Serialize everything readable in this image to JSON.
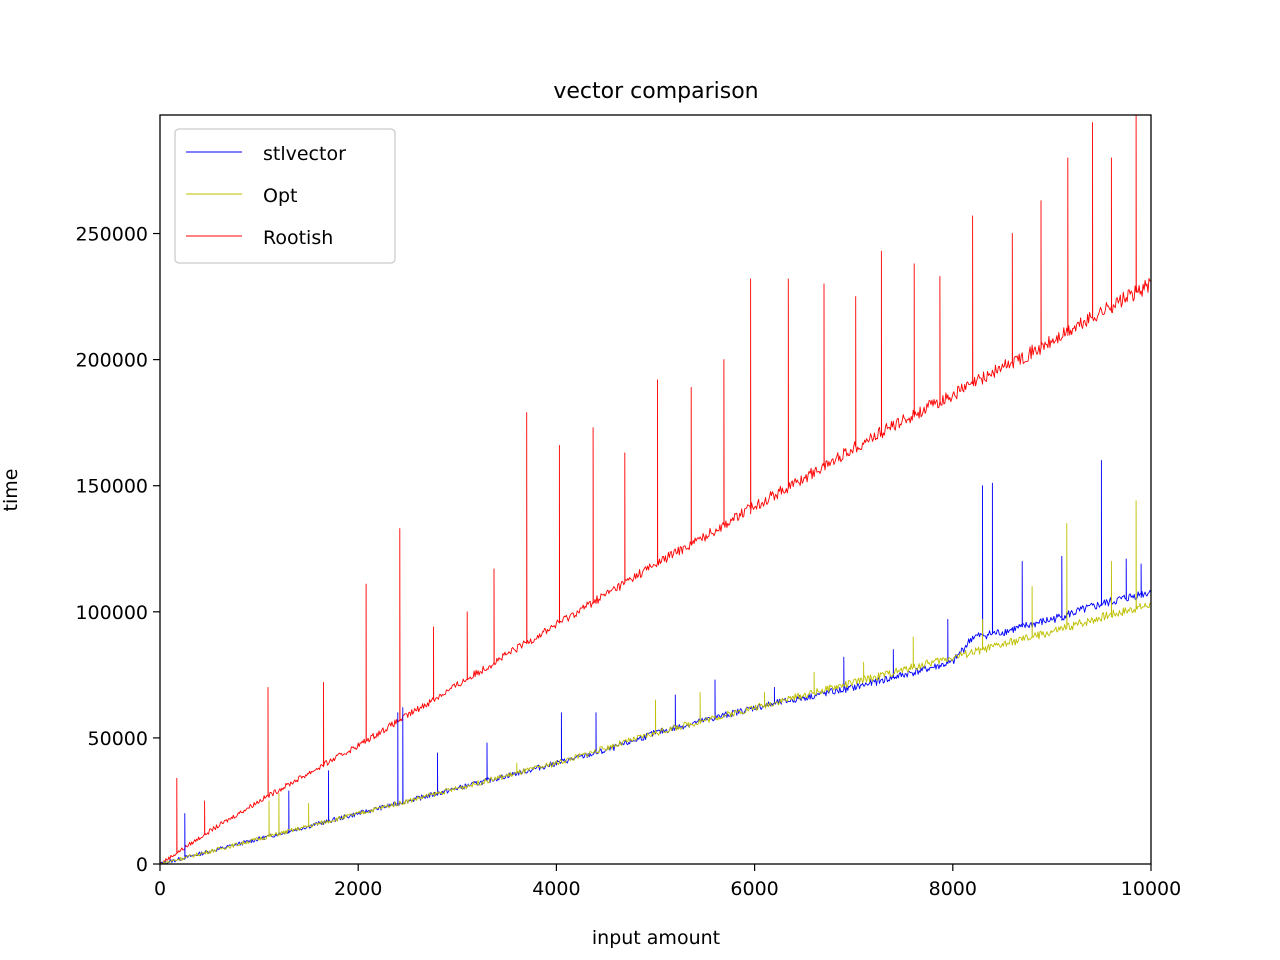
{
  "chart_data": {
    "type": "line",
    "title": "vector comparison",
    "xlabel": "input amount",
    "ylabel": "time",
    "xlim": [
      0,
      10000
    ],
    "ylim": [
      0,
      297000
    ],
    "x_ticks": [
      0,
      2000,
      4000,
      6000,
      8000,
      10000
    ],
    "x_tick_labels": [
      "0",
      "2000",
      "4000",
      "6000",
      "8000",
      "10000"
    ],
    "y_ticks": [
      0,
      50000,
      100000,
      150000,
      200000,
      250000
    ],
    "y_tick_labels": [
      "0",
      "50000",
      "100000",
      "150000",
      "200000",
      "250000"
    ],
    "grid": false,
    "legend_position": "top-left",
    "series": [
      {
        "name": "stlvector",
        "color": "#0000ff",
        "x": [
          0,
          500,
          1000,
          1500,
          2000,
          2500,
          3000,
          3500,
          4000,
          4500,
          5000,
          5500,
          6000,
          6500,
          7000,
          7500,
          8000,
          8200,
          8500,
          9000,
          9500,
          10000
        ],
        "values": [
          0,
          5000,
          10000,
          15000,
          20000,
          25000,
          30000,
          35000,
          40000,
          45000,
          52000,
          57000,
          62000,
          66000,
          70000,
          75000,
          80000,
          90000,
          92000,
          97000,
          103000,
          108000
        ],
        "spikes": [
          [
            250,
            20000
          ],
          [
            1300,
            29000
          ],
          [
            1700,
            37000
          ],
          [
            2400,
            60000
          ],
          [
            2450,
            62000
          ],
          [
            2800,
            44000
          ],
          [
            3300,
            48000
          ],
          [
            4050,
            60000
          ],
          [
            4400,
            60000
          ],
          [
            5200,
            67000
          ],
          [
            5600,
            73000
          ],
          [
            6200,
            70000
          ],
          [
            6900,
            82000
          ],
          [
            7400,
            85000
          ],
          [
            7950,
            97000
          ],
          [
            8300,
            150000
          ],
          [
            8400,
            151000
          ],
          [
            8700,
            120000
          ],
          [
            9100,
            122000
          ],
          [
            9500,
            160000
          ],
          [
            9750,
            121000
          ],
          [
            9900,
            119000
          ]
        ]
      },
      {
        "name": "Opt",
        "color": "#bfbf00",
        "x": [
          0,
          500,
          1000,
          1500,
          2000,
          2500,
          3000,
          3500,
          4000,
          4500,
          5000,
          5500,
          6000,
          6500,
          7000,
          7500,
          8000,
          8500,
          9000,
          9500,
          10000
        ],
        "values": [
          0,
          5000,
          10000,
          15000,
          20000,
          25000,
          30000,
          35000,
          40000,
          46000,
          52000,
          57000,
          62000,
          67000,
          72000,
          77000,
          82000,
          87000,
          92000,
          98000,
          103000
        ],
        "spikes": [
          [
            1100,
            25000
          ],
          [
            1200,
            28000
          ],
          [
            1500,
            24000
          ],
          [
            3600,
            40000
          ],
          [
            5000,
            65000
          ],
          [
            5450,
            68000
          ],
          [
            6100,
            68000
          ],
          [
            6600,
            76000
          ],
          [
            7100,
            80000
          ],
          [
            7600,
            90000
          ],
          [
            8300,
            97000
          ],
          [
            8800,
            110000
          ],
          [
            9150,
            135000
          ],
          [
            9600,
            120000
          ],
          [
            9850,
            144000
          ],
          [
            10000,
            131000
          ]
        ]
      },
      {
        "name": "Rootish",
        "color": "#ff0000",
        "x": [
          0,
          500,
          1000,
          1500,
          2000,
          2500,
          3000,
          3500,
          4000,
          4500,
          5000,
          5500,
          6000,
          6500,
          7000,
          7500,
          8000,
          8500,
          9000,
          9500,
          10000
        ],
        "values": [
          0,
          13000,
          25000,
          36000,
          47000,
          59000,
          71000,
          83000,
          95000,
          107000,
          119000,
          130000,
          142000,
          153000,
          165000,
          176000,
          186000,
          197000,
          207000,
          219000,
          230000
        ],
        "spikes": [
          [
            170,
            34000
          ],
          [
            450,
            25000
          ],
          [
            1090,
            70000
          ],
          [
            1650,
            72000
          ],
          [
            2080,
            111000
          ],
          [
            2420,
            133000
          ],
          [
            2760,
            94000
          ],
          [
            3100,
            100000
          ],
          [
            3370,
            117000
          ],
          [
            3700,
            179000
          ],
          [
            4030,
            166000
          ],
          [
            4370,
            173000
          ],
          [
            4690,
            163000
          ],
          [
            5020,
            192000
          ],
          [
            5360,
            189000
          ],
          [
            5690,
            200000
          ],
          [
            5960,
            232000
          ],
          [
            6340,
            232000
          ],
          [
            6700,
            230000
          ],
          [
            7020,
            225000
          ],
          [
            7280,
            243000
          ],
          [
            7610,
            238000
          ],
          [
            7870,
            233000
          ],
          [
            8200,
            257000
          ],
          [
            8600,
            250000
          ],
          [
            8890,
            263000
          ],
          [
            9160,
            280000
          ],
          [
            9410,
            294000
          ],
          [
            9600,
            280000
          ],
          [
            9850,
            297000
          ]
        ]
      }
    ]
  }
}
